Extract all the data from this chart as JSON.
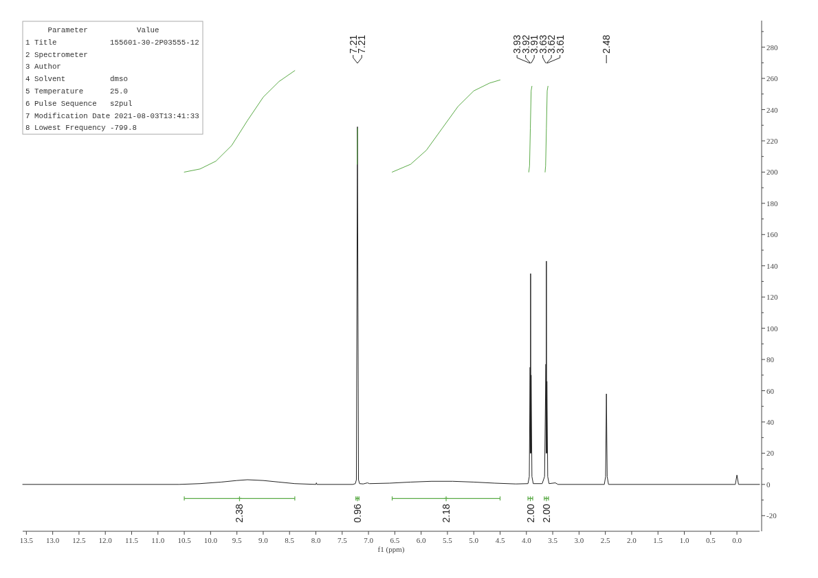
{
  "chart_data": {
    "type": "line",
    "xlabel": "f1 (ppm)",
    "xlim": [
      13.57,
      -0.43
    ],
    "ylim": [
      -30,
      297
    ],
    "xticks": [
      13.5,
      {
        "value": 13,
        "label": "13.0"
      },
      12.5,
      {
        "value": 12,
        "label": "12.0"
      },
      11.5,
      {
        "value": 11,
        "label": "11.0"
      },
      10.5,
      {
        "value": 10,
        "label": "10.0"
      },
      9.5,
      {
        "value": 9,
        "label": "9.0"
      },
      8.5,
      {
        "value": 8,
        "label": "8.0"
      },
      7.5,
      {
        "value": 7,
        "label": "7.0"
      },
      6.5,
      {
        "value": 6,
        "label": "6.0"
      },
      5.5,
      {
        "value": 5,
        "label": "5.0"
      },
      4.5,
      {
        "value": 4,
        "label": "4.0"
      },
      3.5,
      {
        "value": 3,
        "label": "3.0"
      },
      2.5,
      {
        "value": 2,
        "label": "2.0"
      },
      1.5,
      {
        "value": 1,
        "label": "1.0"
      },
      0.5,
      {
        "value": 0,
        "label": "0.0"
      }
    ],
    "yticks": [
      -20,
      {
        "value": -10,
        "label": null
      },
      0,
      {
        "value": 10,
        "label": null
      },
      20,
      {
        "value": 30,
        "label": null
      },
      40,
      {
        "value": 50,
        "label": null
      },
      60,
      {
        "value": 70,
        "label": null
      },
      80,
      {
        "value": 90,
        "label": null
      },
      100,
      {
        "value": 110,
        "label": null
      },
      120,
      {
        "value": 130,
        "label": null
      },
      140,
      {
        "value": 150,
        "label": null
      },
      160,
      {
        "value": 170,
        "label": null
      },
      180,
      {
        "value": 190,
        "label": null
      },
      200,
      {
        "value": 210,
        "label": null
      },
      220,
      {
        "value": 230,
        "label": null
      },
      240,
      {
        "value": 250,
        "label": null
      },
      260,
      {
        "value": 270,
        "label": null
      },
      280,
      {
        "value": 290,
        "label": null
      }
    ],
    "series": [
      {
        "color": "#222222",
        "x": [
          13.57,
          10.6,
          10.2,
          9.8,
          9.5,
          9.3,
          9.0,
          8.7,
          8.4,
          8.0,
          7.99,
          7.98,
          7.3,
          7.25,
          7.23,
          7.21,
          7.19,
          7.17,
          7.1,
          7.02,
          6.98,
          6.6,
          6.2,
          5.8,
          5.4,
          5.0,
          4.6,
          4.2,
          3.97,
          3.945,
          3.93,
          3.925,
          3.92,
          3.915,
          3.91,
          3.895,
          3.87,
          3.7,
          3.655,
          3.63,
          3.625,
          3.62,
          3.615,
          3.61,
          3.595,
          3.57,
          3.45,
          3.4,
          2.52,
          2.495,
          2.48,
          2.465,
          2.44,
          0.03,
          0,
          -0.03,
          -0.43
        ],
        "values": [
          0,
          0,
          0.5,
          1.5,
          2.5,
          3,
          2.5,
          1.5,
          0.5,
          0,
          1,
          0,
          0,
          0.5,
          3,
          229,
          3,
          0.5,
          0.3,
          1,
          0.5,
          0.8,
          1.5,
          2,
          2,
          1.5,
          0.8,
          0.3,
          0.5,
          5,
          75,
          20,
          135,
          20,
          70,
          5,
          0.5,
          0.5,
          5,
          77,
          20,
          143,
          20,
          66,
          5,
          0.5,
          1,
          0,
          0,
          5,
          58,
          5,
          0,
          0,
          6,
          0,
          0
        ]
      },
      {
        "color": "#5aaa46",
        "x": [
          10.5,
          10.2,
          9.9,
          9.6,
          9.3,
          9.0,
          8.7,
          8.4
        ],
        "values": [
          200,
          202,
          207,
          217,
          233,
          248,
          258,
          265
        ]
      },
      {
        "color": "#5aaa46",
        "x": [
          7.215,
          7.21,
          7.205
        ],
        "values": [
          205,
          220,
          228
        ]
      },
      {
        "color": "#5aaa46",
        "x": [
          6.55,
          6.2,
          5.9,
          5.6,
          5.3,
          5.0,
          4.7,
          4.5
        ],
        "values": [
          200,
          205,
          214,
          228,
          242,
          252,
          257,
          259
        ]
      },
      {
        "color": "#5aaa46",
        "x": [
          3.955,
          3.94,
          3.925,
          3.91,
          3.895
        ],
        "values": [
          200,
          204,
          228,
          252,
          255
        ]
      },
      {
        "color": "#5aaa46",
        "x": [
          3.645,
          3.635,
          3.62,
          3.605,
          3.59
        ],
        "values": [
          200,
          204,
          228,
          252,
          255
        ]
      },
      {
        "type": "scatter",
        "marker": "cross",
        "color": "#5aaa46",
        "x": [
          9.45,
          7.21,
          5.525,
          3.925,
          3.62
        ],
        "values": [
          -9,
          -9,
          -9,
          -9,
          -9
        ],
        "xerrors": [
          [
            8.4,
            10.5
          ],
          [
            7.18,
            7.24
          ],
          [
            4.5,
            6.55
          ],
          [
            3.88,
            3.97
          ],
          [
            3.58,
            3.66
          ]
        ]
      }
    ],
    "annotations": [
      "     Parameter           Value",
      "1 Title            155601-30-2P03555-12",
      "2 Spectrometer",
      "3 Author",
      "4 Solvent          dmso",
      "5 Temperature      25.0",
      "6 Pulse Sequence   s2pul",
      "7 Modification Date 2021-08-03T13:41:33",
      "8 Lowest Frequency -799.8",
      {
        "text": "7.21",
        "x": 7.21
      },
      {
        "text": "7.21",
        "x": 7.21
      },
      {
        "text": "3.93",
        "x": 3.93
      },
      {
        "text": "3.92",
        "x": 3.92
      },
      {
        "text": "3.91",
        "x": 3.91
      },
      {
        "text": "3.63",
        "x": 3.63
      },
      {
        "text": "3.62",
        "x": 3.62
      },
      {
        "text": "3.61",
        "x": 3.61
      },
      {
        "text": "2.48",
        "x": 2.48
      },
      {
        "text": "2.38",
        "x": 9.45,
        "y": -9
      },
      {
        "text": "0.96",
        "x": 7.21,
        "y": -9
      },
      {
        "text": "2.18",
        "x": 5.525,
        "y": -9
      },
      {
        "text": "2.00",
        "x": 3.925,
        "y": -9
      },
      {
        "text": "2.00",
        "x": 3.62,
        "y": -9
      }
    ]
  }
}
